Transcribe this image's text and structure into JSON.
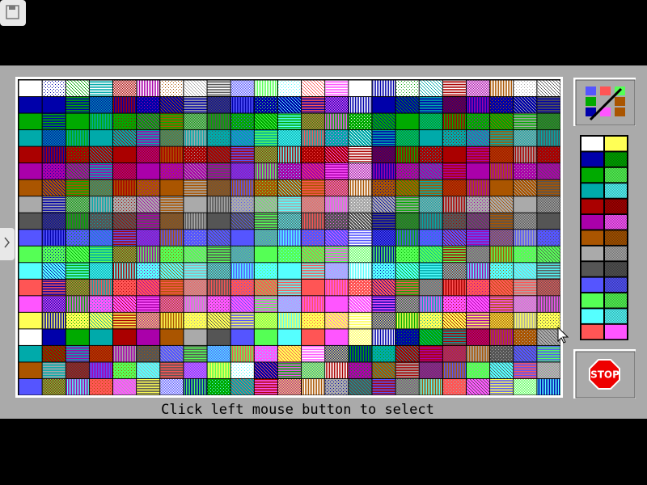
{
  "status": {
    "text": "Click left mouse button to select"
  },
  "stop_button": {
    "label": "STOP"
  }
}
